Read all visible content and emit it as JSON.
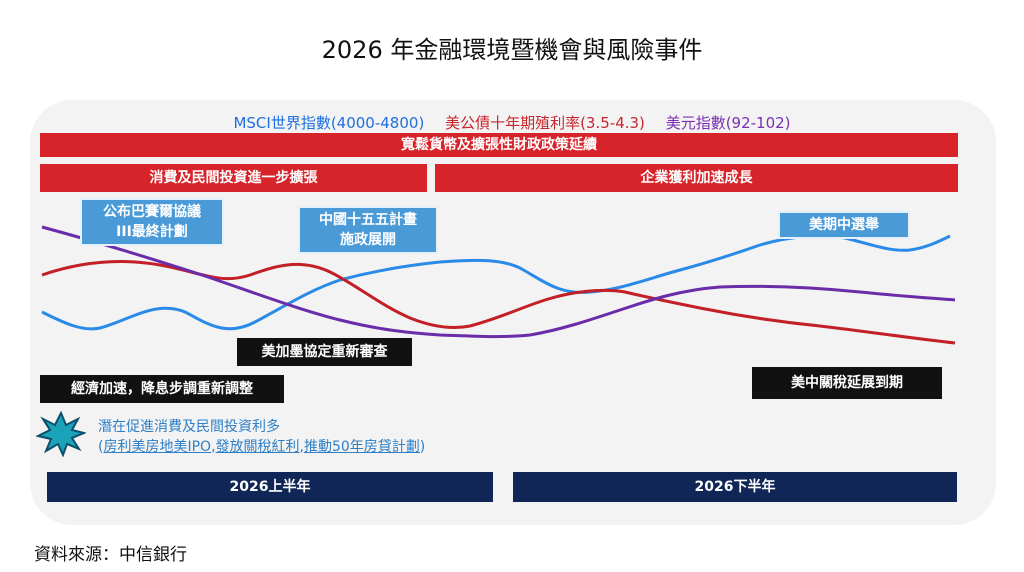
{
  "title": "2026 年金融環境暨機會與風險事件",
  "legend": {
    "msci": {
      "label": "MSCI世界指數(4000-4800)",
      "color": "#1e6fe0"
    },
    "ust": {
      "label": "美公債十年期殖利率(3.5-4.3)",
      "color": "#c8262d"
    },
    "dxy": {
      "label": "美元指數(92-102)",
      "color": "#7b2fb0"
    }
  },
  "banners": {
    "policy": "寬鬆貨幣及擴張性財政政策延續",
    "consumption": "消費及民間投資進一步擴張",
    "earnings": "企業獲利加速成長"
  },
  "events": {
    "paris": [
      "公布巴賽爾協議",
      "III最終計劃"
    ],
    "china": [
      "中國十五五計畫",
      "施政展開"
    ],
    "midterm": "美期中選舉",
    "usmca": "美加墨協定重新審查",
    "growth": "經濟加速，降息步調重新調整",
    "tariff": "美中關稅延展到期"
  },
  "promo": {
    "line1": "潛在促進消費及民間投資利多",
    "open": "(",
    "item1": "房利美房地美IPO",
    "sep1": ",",
    "item2": "發放關稅紅利",
    "sep2": ",",
    "item3": "推動50年房貸計劃",
    "close": ")"
  },
  "periods": {
    "h1": "2026上半年",
    "h2": "2026下半年"
  },
  "source": "資料來源：中信銀行"
}
